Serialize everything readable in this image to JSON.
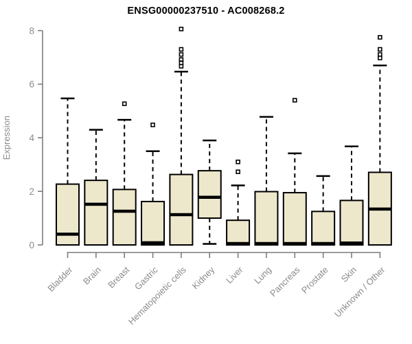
{
  "chart_data": {
    "type": "boxplot",
    "title": "ENSG00000237510 - AC008268.2",
    "xlabel": "",
    "ylabel": "Expression",
    "ylim": [
      0,
      8
    ],
    "yticks": [
      0,
      2,
      4,
      6,
      8
    ],
    "grid": false,
    "legend": "none",
    "categories": [
      "Bladder",
      "Brain",
      "Breast",
      "Gastric",
      "Hematopoietic cells",
      "Kidney",
      "Liver",
      "Lung",
      "Pancreas",
      "Prostate",
      "Skin",
      "Unknown / Other"
    ],
    "boxes": [
      {
        "category": "Bladder",
        "whisker_low": 0,
        "q1": 0,
        "median": 0.4,
        "q3": 2.27,
        "whisker_high": 5.47,
        "outliers": []
      },
      {
        "category": "Brain",
        "whisker_low": 0,
        "q1": 0,
        "median": 1.52,
        "q3": 2.41,
        "whisker_high": 4.3,
        "outliers": []
      },
      {
        "category": "Breast",
        "whisker_low": 0,
        "q1": 0,
        "median": 1.26,
        "q3": 2.07,
        "whisker_high": 4.67,
        "outliers": [
          5.27
        ]
      },
      {
        "category": "Gastric",
        "whisker_low": 0,
        "q1": 0,
        "median": 0.08,
        "q3": 1.62,
        "whisker_high": 3.5,
        "outliers": [
          4.48
        ]
      },
      {
        "category": "Hematopoietic cells",
        "whisker_low": 0,
        "q1": 0,
        "median": 1.13,
        "q3": 2.63,
        "whisker_high": 6.47,
        "outliers": [
          8.06,
          7.3,
          7.11,
          6.92,
          6.8,
          6.67
        ]
      },
      {
        "category": "Kidney",
        "whisker_low": 0.04,
        "q1": 1.0,
        "median": 1.78,
        "q3": 2.77,
        "whisker_high": 3.9,
        "outliers": []
      },
      {
        "category": "Liver",
        "whisker_low": 0,
        "q1": 0,
        "median": 0.05,
        "q3": 0.92,
        "whisker_high": 2.22,
        "outliers": [
          3.1,
          2.73
        ]
      },
      {
        "category": "Lung",
        "whisker_low": 0,
        "q1": 0,
        "median": 0.05,
        "q3": 1.99,
        "whisker_high": 4.78,
        "outliers": []
      },
      {
        "category": "Pancreas",
        "whisker_low": 0,
        "q1": 0,
        "median": 0.05,
        "q3": 1.95,
        "whisker_high": 3.42,
        "outliers": [
          5.4
        ]
      },
      {
        "category": "Prostate",
        "whisker_low": 0,
        "q1": 0,
        "median": 0.05,
        "q3": 1.25,
        "whisker_high": 2.57,
        "outliers": []
      },
      {
        "category": "Skin",
        "whisker_low": 0,
        "q1": 0,
        "median": 0.07,
        "q3": 1.66,
        "whisker_high": 3.68,
        "outliers": []
      },
      {
        "category": "Unknown / Other",
        "whisker_low": 0,
        "q1": 0,
        "median": 1.34,
        "q3": 2.71,
        "whisker_high": 6.7,
        "outliers": [
          7.75,
          7.3,
          7.11,
          6.98
        ]
      }
    ],
    "colors": {
      "box_fill": "#EDE8CC",
      "box_border": "#000000",
      "median": "#000000",
      "whisker": "#000000",
      "outlier": "#000000",
      "axis": "#7c7c7c",
      "tick_label": "#8b8b8b",
      "title": "#000000",
      "background": "#ffffff"
    }
  }
}
